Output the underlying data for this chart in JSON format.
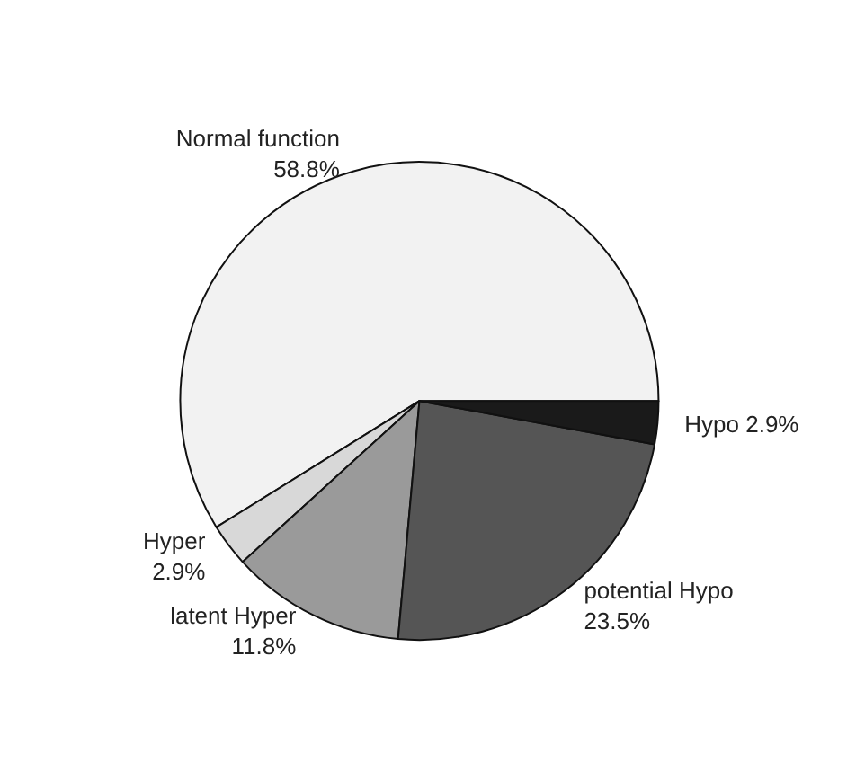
{
  "chart_data": {
    "type": "pie",
    "categories": [
      "Normal function",
      "Hyper",
      "latent Hyper",
      "potential Hypo",
      "Hypo"
    ],
    "values": [
      58.8,
      2.9,
      11.8,
      23.5,
      2.9
    ],
    "colors": [
      "#f2f2f2",
      "#d8d8d8",
      "#9a9a9a",
      "#555555",
      "#1a1a1a"
    ],
    "value_labels": [
      "58.8%",
      "2.9%",
      "11.8%",
      "23.5%",
      "2.9%"
    ],
    "legend": false
  }
}
